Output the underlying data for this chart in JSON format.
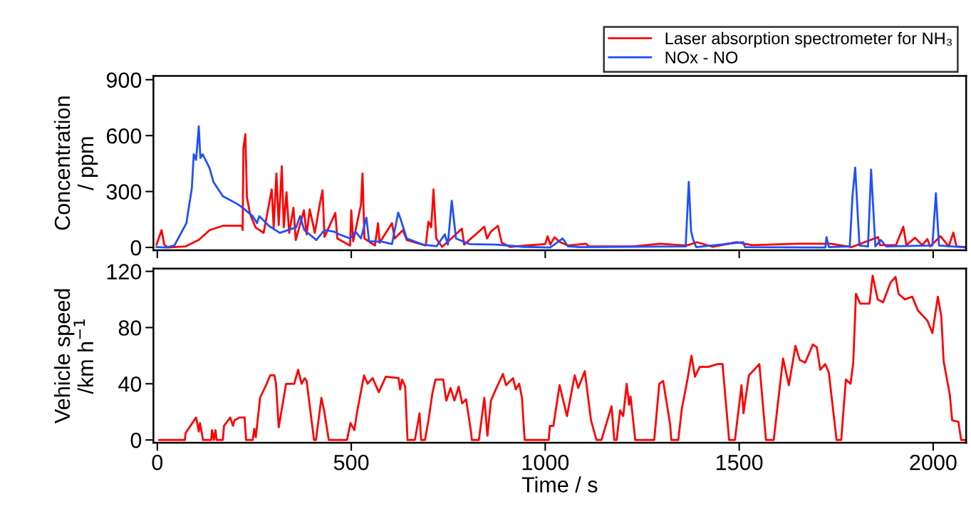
{
  "chart_data": [
    {
      "type": "line",
      "ylabel": "Concentration\n/ ppm",
      "xlim": [
        -10,
        2085
      ],
      "ylim": [
        -15,
        920
      ],
      "xticks": [
        0,
        500,
        1000,
        1500,
        2000
      ],
      "yticks": [
        0,
        300,
        600,
        900
      ],
      "tick_labels": "y",
      "grid": false,
      "legend": "top right",
      "marker": "none",
      "line_style": "solid",
      "series": [
        {
          "name": "Laser absorption spectrometer for NH₃",
          "color": "#ff0000",
          "x": [
            -2,
            11,
            18,
            27,
            72,
            107,
            135,
            169,
            218,
            220,
            222,
            227,
            231,
            239,
            253,
            274,
            295,
            300,
            307,
            313,
            321,
            326,
            333,
            340,
            351,
            357,
            378,
            385,
            393,
            406,
            420,
            426,
            431,
            459,
            464,
            497,
            500,
            505,
            525,
            529,
            534,
            561,
            569,
            573,
            605,
            612,
            633,
            643,
            692,
            699,
            706,
            712,
            719,
            734,
            762,
            785,
            791,
            843,
            850,
            860,
            878,
            888,
            909,
            1000,
            1006,
            1013,
            1024,
            1037,
            1059,
            1105,
            1112,
            1227,
            1296,
            1364,
            1391,
            1432,
            1493,
            1533,
            1648,
            1736,
            1790,
            1858,
            1863,
            1904,
            1923,
            1931,
            1953,
            1972,
            1985,
            1992,
            2019,
            2040,
            2052,
            2060,
            2084
          ],
          "values": [
            15,
            93,
            15,
            0,
            5,
            40,
            93,
            116,
            116,
            93,
            530,
            608,
            270,
            180,
            108,
            78,
            311,
            108,
            397,
            120,
            436,
            108,
            296,
            78,
            213,
            40,
            199,
            70,
            204,
            78,
            245,
            307,
            56,
            185,
            48,
            10,
            199,
            33,
            230,
            397,
            48,
            10,
            130,
            25,
            130,
            48,
            93,
            40,
            10,
            138,
            108,
            311,
            48,
            3,
            56,
            101,
            15,
            111,
            48,
            85,
            116,
            25,
            3,
            18,
            60,
            15,
            55,
            30,
            10,
            20,
            5,
            5,
            20,
            10,
            28,
            3,
            28,
            12,
            20,
            20,
            2,
            55,
            12,
            12,
            111,
            12,
            52,
            12,
            45,
            5,
            60,
            5,
            80,
            5,
            2
          ]
        },
        {
          "name": "NOx - NO",
          "color": "#1f4fff",
          "x": [
            -2,
            23,
            44,
            75,
            89,
            94,
            100,
            107,
            111,
            117,
            135,
            145,
            169,
            204,
            217,
            246,
            257,
            263,
            288,
            316,
            358,
            368,
            379,
            410,
            431,
            455,
            469,
            497,
            511,
            525,
            539,
            546,
            581,
            605,
            621,
            628,
            643,
            685,
            720,
            741,
            749,
            759,
            770,
            804,
            874,
            944,
            1013,
            1045,
            1059,
            1091,
            1362,
            1370,
            1376,
            1381,
            1389,
            1510,
            1515,
            1722,
            1725,
            1731,
            1785,
            1792,
            1799,
            1810,
            1832,
            1840,
            1851,
            1865,
            1879,
            1998,
            2007,
            2015,
            2085
          ],
          "values": [
            2,
            0,
            10,
            130,
            318,
            500,
            470,
            650,
            480,
            500,
            424,
            350,
            275,
            236,
            218,
            168,
            130,
            168,
            115,
            78,
            108,
            168,
            93,
            40,
            93,
            85,
            70,
            48,
            85,
            48,
            160,
            33,
            30,
            18,
            187,
            147,
            48,
            15,
            6,
            70,
            15,
            250,
            48,
            18,
            15,
            3,
            0,
            48,
            5,
            2,
            5,
            352,
            87,
            44,
            2,
            28,
            2,
            0,
            55,
            2,
            5,
            275,
            428,
            10,
            5,
            418,
            5,
            40,
            5,
            10,
            291,
            10,
            0
          ]
        }
      ]
    },
    {
      "type": "line",
      "xlabel": "Time / s",
      "ylabel": "Vehicle speed\n/km h$^{−1}$",
      "xlim": [
        -10,
        2085
      ],
      "ylim": [
        -2,
        122
      ],
      "xticks": [
        0,
        500,
        1000,
        1500,
        2000
      ],
      "yticks": [
        0,
        40,
        80,
        120
      ],
      "grid": false,
      "marker": "none",
      "line_style": "solid",
      "series": [
        {
          "color": "#ff0000",
          "x": [
            5,
            71,
            73,
            83,
            100,
            107,
            110,
            118,
            139,
            141,
            146,
            150,
            153,
            169,
            172,
            188,
            195,
            199,
            212,
            225,
            229,
            246,
            250,
            254,
            265,
            282,
            291,
            302,
            306,
            313,
            332,
            353,
            363,
            372,
            380,
            385,
            394,
            404,
            409,
            423,
            430,
            442,
            489,
            498,
            508,
            515,
            533,
            542,
            555,
            571,
            589,
            622,
            626,
            631,
            639,
            645,
            664,
            676,
            680,
            690,
            699,
            709,
            717,
            737,
            745,
            756,
            766,
            777,
            786,
            796,
            808,
            811,
            829,
            843,
            851,
            860,
            871,
            891,
            899,
            917,
            924,
            933,
            940,
            947,
            1009,
            1012,
            1021,
            1037,
            1056,
            1076,
            1085,
            1102,
            1118,
            1132,
            1145,
            1171,
            1178,
            1184,
            1193,
            1201,
            1210,
            1216,
            1220,
            1232,
            1281,
            1294,
            1304,
            1322,
            1325,
            1343,
            1352,
            1366,
            1377,
            1386,
            1398,
            1420,
            1445,
            1457,
            1474,
            1489,
            1506,
            1511,
            1525,
            1552,
            1569,
            1589,
            1613,
            1628,
            1645,
            1656,
            1670,
            1690,
            1700,
            1709,
            1722,
            1731,
            1751,
            1763,
            1775,
            1787,
            1794,
            1801,
            1812,
            1836,
            1844,
            1857,
            1871,
            1890,
            1903,
            1911,
            1927,
            1946,
            1961,
            1985,
            1998,
            2012,
            2021,
            2027,
            2043,
            2049,
            2065,
            2072,
            2085
          ],
          "values": [
            0,
            0,
            5,
            9,
            16,
            6,
            12,
            0,
            0,
            7,
            0,
            7,
            0,
            0,
            10,
            16,
            10,
            14,
            16,
            16,
            0,
            0,
            8,
            2,
            30,
            40,
            46,
            46,
            40,
            9,
            40,
            40,
            50,
            40,
            44,
            42,
            22,
            0,
            0,
            30,
            21,
            0,
            0,
            12,
            7,
            20,
            46,
            40,
            44,
            34,
            45,
            44,
            36,
            43,
            38,
            0,
            0,
            19,
            0,
            0,
            14,
            33,
            43,
            43,
            28,
            37,
            28,
            38,
            26,
            29,
            7,
            0,
            0,
            30,
            3,
            28,
            35,
            47,
            39,
            44,
            36,
            40,
            30,
            0,
            0,
            10,
            10,
            39,
            17,
            46,
            37,
            49,
            14,
            0,
            0,
            24,
            0,
            0,
            21,
            17,
            40,
            25,
            31,
            0,
            0,
            40,
            42,
            11,
            0,
            0,
            22,
            42,
            60,
            45,
            52,
            52,
            54,
            54,
            0,
            0,
            39,
            19,
            46,
            54,
            0,
            0,
            58,
            39,
            67,
            57,
            55,
            68,
            66,
            50,
            54,
            48,
            0,
            0,
            43,
            40,
            55,
            104,
            97,
            97,
            117,
            100,
            98,
            112,
            116,
            104,
            100,
            102,
            92,
            85,
            76,
            102,
            88,
            56,
            32,
            14,
            13,
            0,
            0
          ]
        }
      ]
    }
  ]
}
